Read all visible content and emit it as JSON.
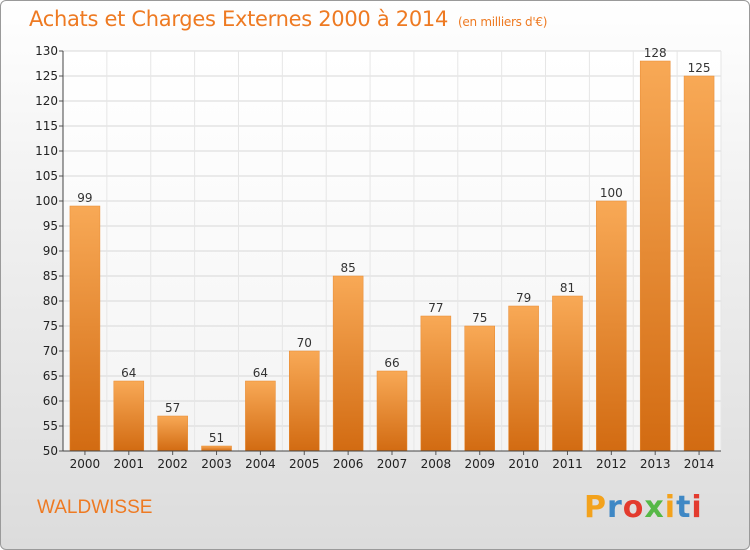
{
  "header": {
    "title": "Achats et Charges Externes 2000 à 2014",
    "unit": "(en milliers d'€)"
  },
  "footer": {
    "commune": "WALDWISSE",
    "logo_text": "Proxiti"
  },
  "colors": {
    "accent": "#ee7a22",
    "bar_top": "#f8a956",
    "bar_bottom": "#d26b12",
    "logo_letters": [
      "#f3a21c",
      "#3f88c5",
      "#e33b2e",
      "#56b847",
      "#f3a21c",
      "#3f88c5",
      "#e33b2e"
    ]
  },
  "chart_data": {
    "type": "bar",
    "title": "Achats et Charges Externes 2000 à 2014",
    "subtitle": "(en milliers d'€)",
    "categories": [
      "2000",
      "2001",
      "2002",
      "2003",
      "2004",
      "2005",
      "2006",
      "2007",
      "2008",
      "2009",
      "2010",
      "2011",
      "2012",
      "2013",
      "2014"
    ],
    "values": [
      99,
      64,
      57,
      51,
      64,
      70,
      85,
      66,
      77,
      75,
      79,
      81,
      100,
      128,
      125
    ],
    "ylim": [
      50,
      130
    ],
    "yticks": [
      50,
      55,
      60,
      65,
      70,
      75,
      80,
      85,
      90,
      95,
      100,
      105,
      110,
      115,
      120,
      125,
      130
    ],
    "xlabel": "",
    "ylabel": "",
    "grid": true
  }
}
